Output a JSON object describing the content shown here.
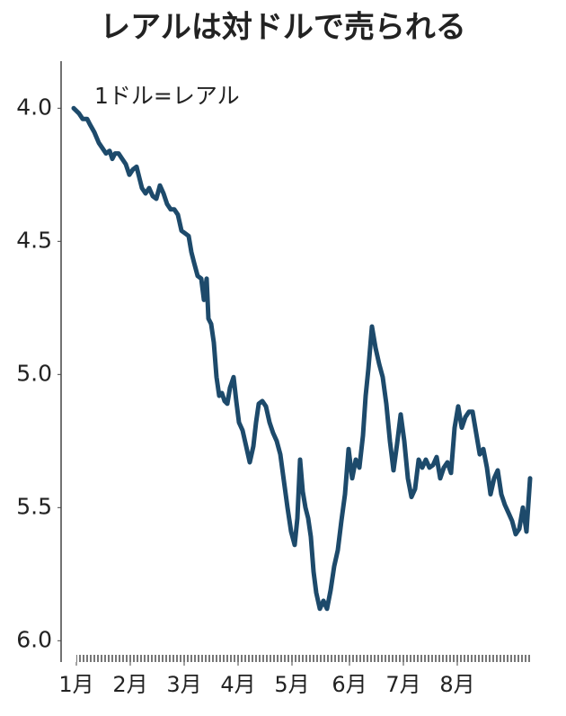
{
  "chart_data": {
    "type": "line",
    "title": "レアルは対ドルで売られる",
    "annotation": "1ドル=レアル",
    "y_inverted": true,
    "ylim": [
      3.83,
      6.08
    ],
    "yticks": [
      {
        "value": 4,
        "label": "4.0"
      },
      {
        "value": 4.5,
        "label": "4.5"
      },
      {
        "value": 5,
        "label": "5.0"
      },
      {
        "value": 5.5,
        "label": "5.5"
      },
      {
        "value": 6,
        "label": "6.0"
      }
    ],
    "xlim": [
      -8.5,
      257.5
    ],
    "xticks": [
      {
        "value": 0,
        "label": "1月"
      },
      {
        "value": 30,
        "label": "2月"
      },
      {
        "value": 60,
        "label": "3月"
      },
      {
        "value": 90,
        "label": "4月"
      },
      {
        "value": 120,
        "label": "5月"
      },
      {
        "value": 152,
        "label": "6月"
      },
      {
        "value": 182,
        "label": "7月"
      },
      {
        "value": 212,
        "label": "8月"
      }
    ],
    "series": [
      {
        "name": "レアル",
        "color": "#1d4a6b",
        "x": [
          -1.5,
          1.5,
          3.5,
          6,
          7.5,
          10,
          12.5,
          14.5,
          16.5,
          18.5,
          20,
          21.5,
          23.5,
          25.5,
          27.5,
          29.5,
          31.5,
          33.5,
          35,
          36.5,
          38.5,
          40.5,
          42.5,
          44.5,
          46.5,
          48.5,
          50.5,
          52.5,
          54.5,
          56.5,
          58.5,
          60.5,
          62.5,
          64,
          65.5,
          67.5,
          69.5,
          71,
          72.5,
          73.5,
          75,
          76.5,
          78,
          79.5,
          81,
          82.5,
          84,
          85.5,
          87.5,
          89,
          90.5,
          92.5,
          94.5,
          96.5,
          98.5,
          100,
          101.5,
          103.5,
          105.5,
          107.5,
          109.5,
          111.5,
          113.5,
          115.5,
          117.5,
          119.5,
          121.5,
          123,
          124.5,
          126,
          127.5,
          129,
          130.5,
          132,
          133.5,
          135.5,
          137.5,
          139.5,
          141.5,
          143.5,
          145.5,
          147.5,
          149.5,
          151.5,
          153.5,
          155.5,
          157.5,
          159.5,
          161,
          162.5,
          164.5,
          166.5,
          168.5,
          170.5,
          172.5,
          174.5,
          176.5,
          178.5,
          180.5,
          182.5,
          184.5,
          186.5,
          188.5,
          190.5,
          192.5,
          194.5,
          196.5,
          198.5,
          200.5,
          202.5,
          204.5,
          206.5,
          208.5,
          210.5,
          212.5,
          214.5,
          216.5,
          218.5,
          220.5,
          222.5,
          224.5,
          226.5,
          228.5,
          230.5,
          232.5,
          234.5,
          236.5,
          238.5,
          240.5,
          242.5,
          244.5,
          246.5,
          248.5,
          250.5,
          252.5
        ],
        "values": [
          4.0,
          4.02,
          4.04,
          4.04,
          4.06,
          4.09,
          4.13,
          4.15,
          4.17,
          4.16,
          4.19,
          4.17,
          4.17,
          4.19,
          4.21,
          4.25,
          4.23,
          4.22,
          4.26,
          4.3,
          4.32,
          4.3,
          4.33,
          4.34,
          4.29,
          4.32,
          4.36,
          4.38,
          4.38,
          4.4,
          4.46,
          4.47,
          4.48,
          4.54,
          4.58,
          4.63,
          4.64,
          4.72,
          4.64,
          4.79,
          4.81,
          4.88,
          5.01,
          5.08,
          5.07,
          5.1,
          5.11,
          5.05,
          5.01,
          5.1,
          5.18,
          5.21,
          5.27,
          5.33,
          5.27,
          5.18,
          5.11,
          5.1,
          5.12,
          5.18,
          5.22,
          5.25,
          5.3,
          5.4,
          5.5,
          5.59,
          5.64,
          5.54,
          5.32,
          5.44,
          5.5,
          5.54,
          5.61,
          5.74,
          5.82,
          5.88,
          5.85,
          5.88,
          5.81,
          5.72,
          5.66,
          5.55,
          5.45,
          5.28,
          5.39,
          5.32,
          5.35,
          5.23,
          5.08,
          4.98,
          4.82,
          4.9,
          4.96,
          5.01,
          5.11,
          5.25,
          5.36,
          5.26,
          5.15,
          5.25,
          5.39,
          5.46,
          5.43,
          5.32,
          5.35,
          5.32,
          5.35,
          5.34,
          5.31,
          5.39,
          5.35,
          5.33,
          5.37,
          5.2,
          5.12,
          5.2,
          5.16,
          5.14,
          5.14,
          5.22,
          5.3,
          5.28,
          5.35,
          5.45,
          5.39,
          5.36,
          5.45,
          5.49,
          5.52,
          5.55,
          5.6,
          5.58,
          5.5,
          5.59,
          5.39
        ]
      }
    ]
  }
}
